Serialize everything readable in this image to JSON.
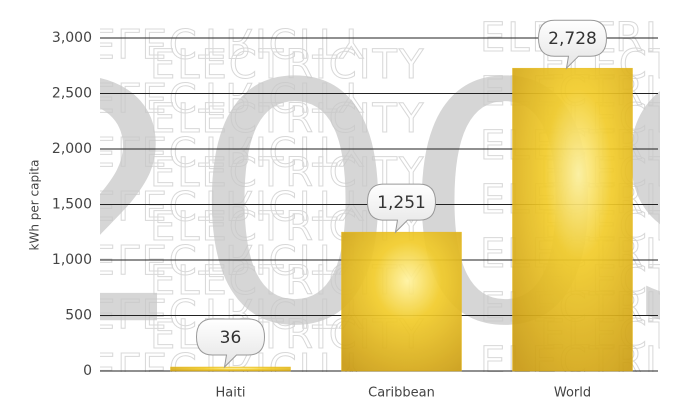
{
  "chart_data": {
    "type": "bar",
    "y_label": "kWh per capita",
    "watermark_year": "2009",
    "watermark_text": "ELECTRICITY",
    "categories": [
      "Haiti",
      "Caribbean",
      "World"
    ],
    "values": [
      36,
      1251,
      2728
    ],
    "value_labels": [
      "36",
      "1,251",
      "2,728"
    ],
    "color": "#e8b818",
    "ylim": [
      0,
      3000
    ],
    "yticks": [
      0,
      {
        "value": 500,
        "label": "500"
      },
      {
        "value": 1000,
        "label": "1,000"
      },
      {
        "value": 1500,
        "label": "1,500"
      },
      {
        "value": 2000,
        "label": "2,000"
      },
      {
        "value": 2500,
        "label": "2,500"
      },
      {
        "value": 3000,
        "label": "3,000"
      }
    ],
    "grid": true
  }
}
